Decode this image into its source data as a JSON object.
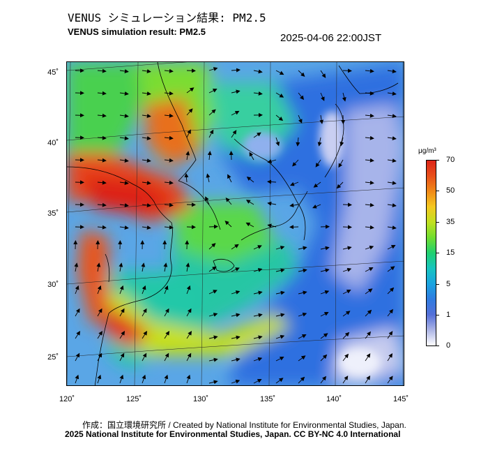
{
  "header": {
    "title_jp": "VENUS シミュレーション結果: PM2.5",
    "title_en": "VENUS simulation result: PM2.5",
    "timestamp": "2025-04-06 22:00JST"
  },
  "map": {
    "lat_labels": [
      "45˚",
      "40˚",
      "35˚",
      "30˚",
      "25˚"
    ],
    "lon_labels": [
      "120˚",
      "125˚",
      "130˚",
      "135˚",
      "140˚",
      "145˚"
    ],
    "colors": {
      "very_high": "#dd2418",
      "high": "#f08a18",
      "moderate": "#c0e020",
      "low": "#20d070",
      "clean": "#2f7be0",
      "very_clean": "#b0b8e6"
    }
  },
  "colorbar": {
    "unit": "μg/m³",
    "labels": [
      "70",
      "50",
      "35",
      "15",
      "5",
      "1",
      "0"
    ]
  },
  "footer": {
    "credit_line": "作成：国立環境研究所 / Created by National Institute for Environmental Studies, Japan.",
    "copyright_line": "2025 National Institute for Environmental Studies, Japan. CC BY-NC 4.0 International"
  }
}
